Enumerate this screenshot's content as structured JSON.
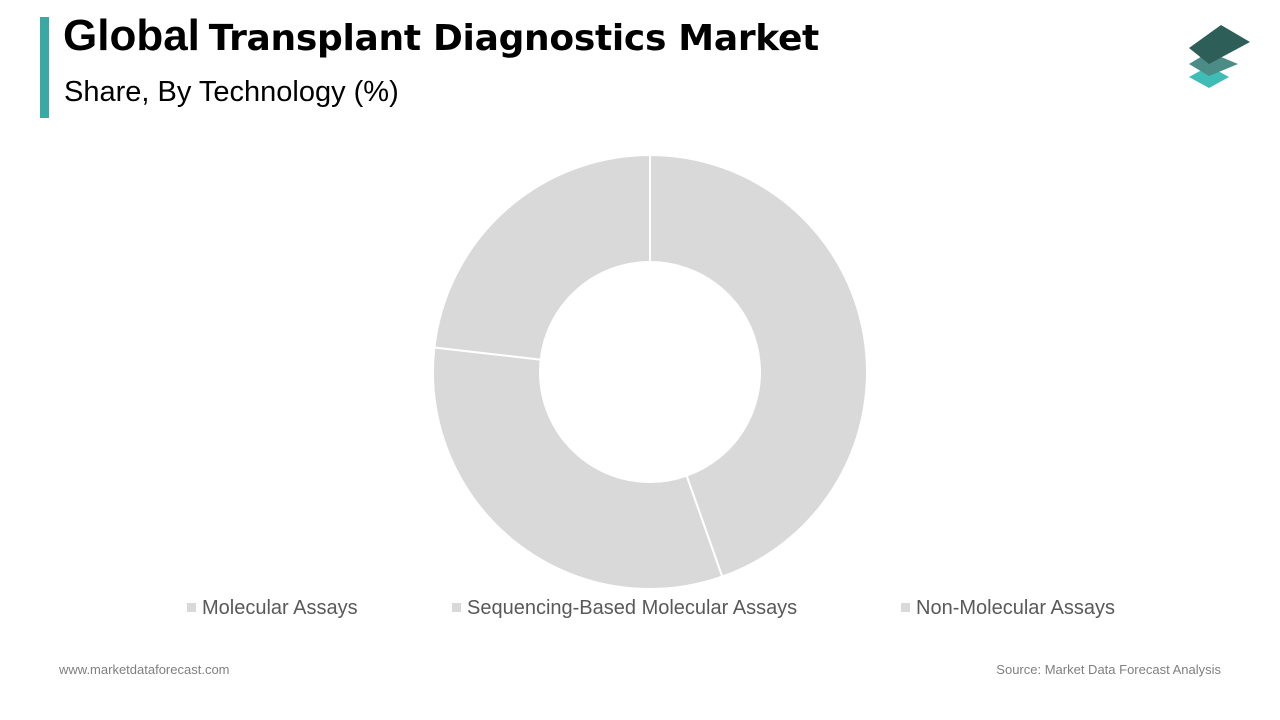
{
  "header": {
    "title_word1": "Global",
    "title_rest": "Transplant Diagnostics Market",
    "subtitle": "Share, By Technology (%)",
    "accent_color": "#3aa9a5"
  },
  "logo": {
    "icon": "stacked-layers-icon",
    "colors": [
      "#2e5e58",
      "#4b8c86",
      "#3fbcb5"
    ]
  },
  "chart_data": {
    "type": "pie",
    "donut": true,
    "title": "",
    "categories": [
      "Molecular Assays",
      "Sequencing-Based Molecular Assays",
      "Non-Molecular Assays"
    ],
    "values": [
      44.6,
      32.2,
      23.2
    ],
    "colors": [
      "#d9d9d9",
      "#d9d9d9",
      "#d9d9d9"
    ],
    "start_angle_deg": 0,
    "direction": "clockwise",
    "legend_position": "bottom",
    "data_labels_shown": false
  },
  "footer": {
    "website": "www.marketdataforecast.com",
    "source": "Source: Market Data Forecast Analysis"
  }
}
